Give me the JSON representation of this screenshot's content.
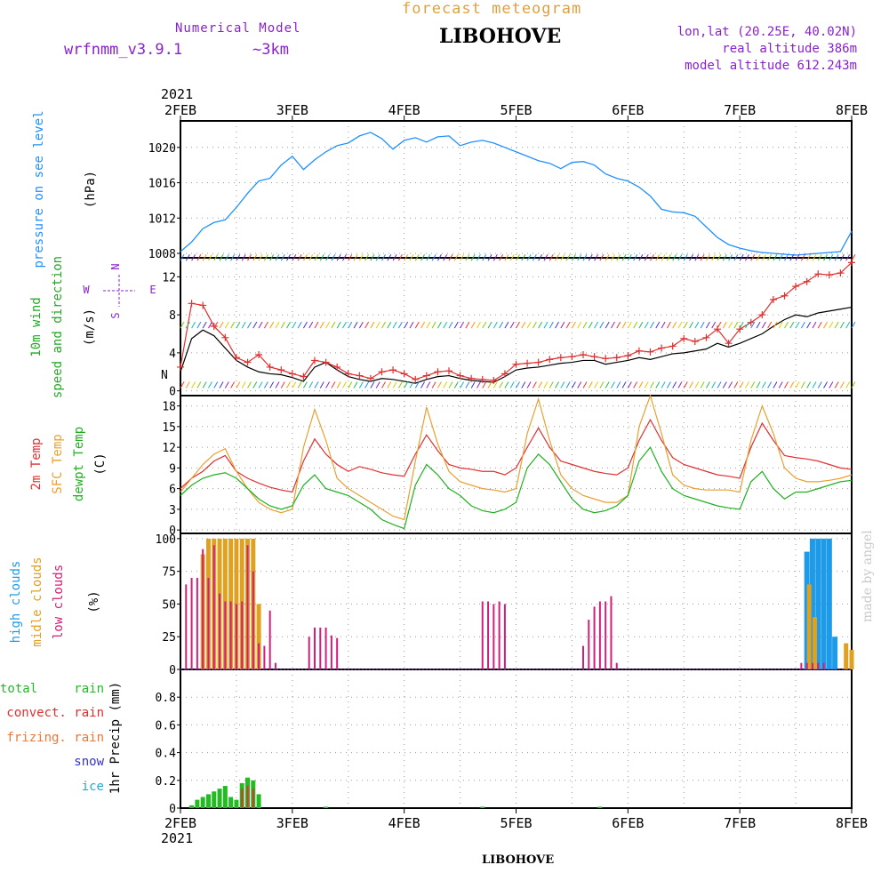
{
  "header": {
    "title_top": "forecast meteogram",
    "location": "LIBOHOVE",
    "model_label": "Numerical Model",
    "model_name": "wrfnmm_v3.9.1",
    "resolution": "~3km",
    "lonlat": "lon,lat (20.25E, 40.02N)",
    "real_altitude": "real altitude 386m",
    "model_altitude": "model altitude  612.243m",
    "footer_location": "LIBOHOVE",
    "credit": "made by angel"
  },
  "colors": {
    "pressure": "#1e90ff",
    "wind_label": "#22aa22",
    "wind_speed": "#000000",
    "wind_gust": "#e03030",
    "temp2m": "#e03030",
    "sfc_temp": "#e8a030",
    "dewpt": "#20b020",
    "high_clouds": "#1e9be8",
    "middle_clouds": "#e0a020",
    "low_clouds": "#d01f7a",
    "total_rain": "#22bb22",
    "convect_rain": "#e03030",
    "frizing_rain": "#ee7733",
    "snow": "#3333cc",
    "ice": "#22aacc",
    "purple_text": "#8822cc",
    "gold_text": "#e0a040"
  },
  "chart_data": [
    {
      "type": "line",
      "panel": "pressure",
      "ylabel": "pressure on see level",
      "unit": "(hPa)",
      "ylim": [
        1007.5,
        1023
      ],
      "yticks": [
        1008,
        1012,
        1016,
        1020
      ],
      "x_dates_top": [
        "2FEB",
        "3FEB",
        "4FEB",
        "5FEB",
        "6FEB",
        "7FEB",
        "8FEB"
      ],
      "year": "2021",
      "grid": true,
      "series": [
        {
          "x": [
            0,
            0.1,
            0.2,
            0.3,
            0.4,
            0.5,
            0.6,
            0.7,
            0.8,
            0.9,
            1.0,
            1.1,
            1.2,
            1.3,
            1.4,
            1.5,
            1.6,
            1.7,
            1.8,
            1.9,
            2.0,
            2.1,
            2.2,
            2.3,
            2.4,
            2.5,
            2.6,
            2.7,
            2.8,
            2.9,
            3.0,
            3.1,
            3.2,
            3.3,
            3.4,
            3.5,
            3.6,
            3.7,
            3.8,
            3.9,
            4.0,
            4.1,
            4.2,
            4.3,
            4.4,
            4.5,
            4.6,
            4.7,
            4.8,
            4.9,
            5.0,
            5.1,
            5.2,
            5.3,
            5.4,
            5.5,
            5.6,
            5.7,
            5.8,
            5.9,
            6.0
          ],
          "y": [
            1008.2,
            1009.3,
            1010.8,
            1011.5,
            1011.8,
            1013.2,
            1014.8,
            1016.2,
            1016.5,
            1018.0,
            1019.0,
            1017.5,
            1018.6,
            1019.5,
            1020.2,
            1020.5,
            1021.3,
            1021.7,
            1021.0,
            1019.8,
            1020.8,
            1021.1,
            1020.6,
            1021.2,
            1021.3,
            1020.2,
            1020.6,
            1020.8,
            1020.5,
            1020.0,
            1019.5,
            1019.0,
            1018.5,
            1018.2,
            1017.6,
            1018.3,
            1018.4,
            1018.0,
            1017.0,
            1016.5,
            1016.2,
            1015.5,
            1014.5,
            1013.0,
            1012.7,
            1012.6,
            1012.2,
            1011.0,
            1009.8,
            1009.0,
            1008.6,
            1008.3,
            1008.1,
            1008.0,
            1007.9,
            1007.8,
            1007.9,
            1008.0,
            1008.1,
            1008.2,
            1010.5
          ]
        }
      ]
    },
    {
      "type": "line",
      "panel": "wind",
      "ylabel": "10m wind speed and direction",
      "unit": "(m/s)",
      "compass": [
        "N",
        "W",
        "E",
        "S"
      ],
      "ylim": [
        -0.5,
        14
      ],
      "yticks": [
        0,
        4,
        8,
        12
      ],
      "grid": true,
      "series": [
        {
          "name": "speed",
          "x": [
            0,
            0.1,
            0.2,
            0.3,
            0.4,
            0.5,
            0.6,
            0.7,
            0.8,
            0.9,
            1.0,
            1.1,
            1.2,
            1.3,
            1.4,
            1.5,
            1.6,
            1.7,
            1.8,
            1.9,
            2.0,
            2.1,
            2.2,
            2.3,
            2.4,
            2.5,
            2.6,
            2.7,
            2.8,
            2.9,
            3.0,
            3.1,
            3.2,
            3.3,
            3.4,
            3.5,
            3.6,
            3.7,
            3.8,
            3.9,
            4.0,
            4.1,
            4.2,
            4.3,
            4.4,
            4.5,
            4.6,
            4.7,
            4.8,
            4.9,
            5.0,
            5.1,
            5.2,
            5.3,
            5.4,
            5.5,
            5.6,
            5.7,
            5.8,
            5.9,
            6.0
          ],
          "y": [
            2.0,
            5.5,
            6.4,
            5.8,
            4.5,
            3.2,
            2.5,
            2.0,
            1.8,
            1.7,
            1.4,
            1.0,
            2.5,
            3.0,
            2.2,
            1.5,
            1.2,
            1.0,
            1.3,
            1.2,
            1.0,
            0.8,
            1.2,
            1.5,
            1.6,
            1.3,
            1.1,
            1.0,
            0.9,
            1.5,
            2.2,
            2.4,
            2.5,
            2.7,
            2.9,
            3.0,
            3.2,
            3.2,
            2.8,
            3.0,
            3.2,
            3.5,
            3.3,
            3.6,
            3.9,
            4.0,
            4.2,
            4.4,
            5.0,
            4.6,
            5.0,
            5.5,
            6.0,
            6.8,
            7.5,
            8.0,
            7.8,
            8.2,
            8.4,
            8.6,
            8.8
          ]
        },
        {
          "name": "gust",
          "x": [
            0,
            0.1,
            0.2,
            0.3,
            0.4,
            0.5,
            0.6,
            0.7,
            0.8,
            0.9,
            1.0,
            1.1,
            1.2,
            1.3,
            1.4,
            1.5,
            1.6,
            1.7,
            1.8,
            1.9,
            2.0,
            2.1,
            2.2,
            2.3,
            2.4,
            2.5,
            2.6,
            2.7,
            2.8,
            2.9,
            3.0,
            3.1,
            3.2,
            3.3,
            3.4,
            3.5,
            3.6,
            3.7,
            3.8,
            3.9,
            4.0,
            4.1,
            4.2,
            4.3,
            4.4,
            4.5,
            4.6,
            4.7,
            4.8,
            4.9,
            5.0,
            5.1,
            5.2,
            5.3,
            5.4,
            5.5,
            5.6,
            5.7,
            5.8,
            5.9,
            6.0
          ],
          "y": [
            2.5,
            9.2,
            9.0,
            6.8,
            5.6,
            3.5,
            3.0,
            3.8,
            2.5,
            2.2,
            1.8,
            1.5,
            3.2,
            3.0,
            2.5,
            1.8,
            1.6,
            1.3,
            2.0,
            2.2,
            1.8,
            1.2,
            1.6,
            2.0,
            2.1,
            1.6,
            1.3,
            1.2,
            1.1,
            1.8,
            2.8,
            2.9,
            3.0,
            3.3,
            3.5,
            3.6,
            3.8,
            3.6,
            3.4,
            3.5,
            3.7,
            4.2,
            4.1,
            4.5,
            4.7,
            5.5,
            5.2,
            5.6,
            6.5,
            5.0,
            6.5,
            7.2,
            8.0,
            9.6,
            10.0,
            11.0,
            11.5,
            12.3,
            12.2,
            12.4,
            13.5
          ]
        }
      ]
    },
    {
      "type": "line",
      "panel": "temperature",
      "ylabel": [
        "2m Temp",
        "SFC Temp",
        "dewpt Temp"
      ],
      "unit": "(C)",
      "ylim": [
        -0.5,
        19.5
      ],
      "yticks": [
        0,
        3,
        6,
        9,
        12,
        15,
        18
      ],
      "grid": true,
      "series": [
        {
          "name": "2m Temp",
          "x": [
            0,
            0.1,
            0.2,
            0.3,
            0.4,
            0.5,
            0.6,
            0.7,
            0.8,
            0.9,
            1.0,
            1.1,
            1.2,
            1.3,
            1.4,
            1.5,
            1.6,
            1.7,
            1.8,
            1.9,
            2.0,
            2.1,
            2.2,
            2.3,
            2.4,
            2.5,
            2.6,
            2.7,
            2.8,
            2.9,
            3.0,
            3.1,
            3.2,
            3.3,
            3.4,
            3.5,
            3.6,
            3.7,
            3.8,
            3.9,
            4.0,
            4.1,
            4.2,
            4.3,
            4.4,
            4.5,
            4.6,
            4.7,
            4.8,
            4.9,
            5.0,
            5.1,
            5.2,
            5.3,
            5.4,
            5.5,
            5.6,
            5.7,
            5.8,
            5.9,
            6.0
          ],
          "y": [
            6.0,
            7.5,
            8.5,
            10.0,
            10.8,
            8.5,
            7.5,
            6.8,
            6.2,
            5.8,
            5.5,
            10.0,
            13.2,
            11.0,
            9.5,
            8.5,
            9.2,
            8.8,
            8.3,
            8.0,
            7.8,
            11.0,
            13.8,
            11.5,
            9.5,
            9.0,
            8.8,
            8.5,
            8.5,
            8.0,
            9.0,
            12.0,
            14.8,
            12.0,
            10.0,
            9.5,
            9.0,
            8.5,
            8.2,
            8.0,
            9.0,
            13.0,
            16.0,
            13.0,
            10.5,
            9.5,
            9.0,
            8.5,
            8.0,
            7.8,
            7.5,
            12.0,
            15.5,
            13.0,
            10.8,
            10.5,
            10.3,
            10.0,
            9.5,
            9.0,
            8.8
          ]
        },
        {
          "name": "SFC Temp",
          "x": [
            0,
            0.1,
            0.2,
            0.3,
            0.4,
            0.5,
            0.6,
            0.7,
            0.8,
            0.9,
            1.0,
            1.1,
            1.2,
            1.3,
            1.4,
            1.5,
            1.6,
            1.7,
            1.8,
            1.9,
            2.0,
            2.1,
            2.2,
            2.3,
            2.4,
            2.5,
            2.6,
            2.7,
            2.8,
            2.9,
            3.0,
            3.1,
            3.2,
            3.3,
            3.4,
            3.5,
            3.6,
            3.7,
            3.8,
            3.9,
            4.0,
            4.1,
            4.2,
            4.3,
            4.4,
            4.5,
            4.6,
            4.7,
            4.8,
            4.9,
            5.0,
            5.1,
            5.2,
            5.3,
            5.4,
            5.5,
            5.6,
            5.7,
            5.8,
            5.9,
            6.0
          ],
          "y": [
            5.5,
            7.5,
            9.5,
            11.0,
            11.8,
            8.5,
            6.0,
            4.0,
            3.0,
            2.5,
            3.0,
            12.0,
            17.5,
            13.0,
            7.5,
            6.0,
            5.0,
            4.0,
            3.0,
            2.0,
            1.5,
            10.0,
            17.8,
            12.5,
            8.5,
            7.0,
            6.5,
            6.0,
            5.8,
            5.5,
            6.0,
            14.0,
            19.0,
            13.0,
            8.0,
            6.0,
            5.0,
            4.5,
            4.0,
            4.0,
            5.0,
            15.0,
            19.5,
            14.0,
            8.0,
            6.5,
            6.0,
            5.8,
            5.8,
            5.8,
            5.5,
            13.0,
            18.0,
            14.0,
            9.0,
            7.5,
            7.0,
            7.0,
            7.2,
            7.5,
            8.0
          ]
        },
        {
          "name": "dewpt Temp",
          "x": [
            0,
            0.1,
            0.2,
            0.3,
            0.4,
            0.5,
            0.6,
            0.7,
            0.8,
            0.9,
            1.0,
            1.1,
            1.2,
            1.3,
            1.4,
            1.5,
            1.6,
            1.7,
            1.8,
            1.9,
            2.0,
            2.1,
            2.2,
            2.3,
            2.4,
            2.5,
            2.6,
            2.7,
            2.8,
            2.9,
            3.0,
            3.1,
            3.2,
            3.3,
            3.4,
            3.5,
            3.6,
            3.7,
            3.8,
            3.9,
            4.0,
            4.1,
            4.2,
            4.3,
            4.4,
            4.5,
            4.6,
            4.7,
            4.8,
            4.9,
            5.0,
            5.1,
            5.2,
            5.3,
            5.4,
            5.5,
            5.6,
            5.7,
            5.8,
            5.9,
            6.0
          ],
          "y": [
            5.0,
            6.5,
            7.5,
            8.0,
            8.3,
            7.5,
            6.0,
            4.5,
            3.5,
            3.0,
            3.5,
            6.5,
            8.0,
            6.0,
            5.5,
            5.0,
            4.0,
            3.0,
            1.5,
            0.8,
            0.2,
            6.5,
            9.5,
            8.0,
            6.0,
            5.0,
            3.5,
            2.8,
            2.5,
            3.0,
            4.0,
            9.0,
            11.0,
            9.5,
            7.0,
            4.5,
            3.0,
            2.5,
            2.8,
            3.5,
            5.0,
            10.0,
            12.0,
            8.5,
            6.0,
            5.0,
            4.5,
            4.0,
            3.5,
            3.2,
            3.0,
            7.0,
            8.5,
            6.0,
            4.5,
            5.5,
            5.5,
            6.0,
            6.5,
            7.0,
            7.2
          ]
        }
      ]
    },
    {
      "type": "bar",
      "panel": "clouds",
      "ylabel": [
        "high clouds",
        "midle clouds",
        "low clouds"
      ],
      "unit": "(%)",
      "ylim": [
        0,
        104
      ],
      "yticks": [
        0,
        25,
        50,
        75,
        100
      ],
      "grid": true,
      "series": [
        {
          "name": "high clouds",
          "x": [
            5.6,
            5.65,
            5.7,
            5.75,
            5.8,
            5.85
          ],
          "values": [
            90,
            100,
            100,
            100,
            100,
            25
          ]
        },
        {
          "name": "midle clouds",
          "x": [
            0.2,
            0.25,
            0.3,
            0.35,
            0.4,
            0.45,
            0.5,
            0.55,
            0.6,
            0.65,
            0.7,
            5.62,
            5.67,
            5.95,
            6.0
          ],
          "values": [
            88,
            100,
            100,
            100,
            100,
            100,
            100,
            100,
            100,
            100,
            50,
            65,
            40,
            20,
            15
          ]
        },
        {
          "name": "low clouds",
          "x": [
            0.05,
            0.1,
            0.15,
            0.2,
            0.25,
            0.3,
            0.35,
            0.4,
            0.45,
            0.5,
            0.55,
            0.6,
            0.65,
            0.7,
            0.75,
            0.8,
            0.85,
            0.9,
            1.15,
            1.2,
            1.25,
            1.3,
            1.35,
            1.4,
            2.65,
            2.7,
            2.75,
            2.8,
            2.85,
            2.9,
            3.6,
            3.65,
            3.7,
            3.75,
            3.8,
            3.85,
            3.9,
            5.55,
            5.6,
            5.65,
            5.7,
            5.75
          ],
          "values": [
            65,
            70,
            70,
            92,
            70,
            95,
            58,
            52,
            52,
            50,
            52,
            95,
            75,
            20,
            18,
            45,
            5,
            0,
            25,
            32,
            32,
            32,
            26,
            24,
            0,
            52,
            52,
            50,
            52,
            50,
            18,
            38,
            48,
            52,
            52,
            56,
            5,
            5,
            5,
            5,
            5,
            5
          ]
        }
      ]
    },
    {
      "type": "bar",
      "panel": "precip",
      "ylabel": "1hr Precip (mm)",
      "legend": [
        "total",
        "rain",
        "convect. rain",
        "frizing. rain",
        "snow",
        "ice"
      ],
      "ylim": [
        0,
        1.0
      ],
      "yticks": [
        0,
        0.2,
        0.4,
        0.6,
        0.8
      ],
      "ytick_labels": [
        "0",
        "0.2",
        "0.4",
        "0.6",
        "0.8"
      ],
      "grid": true,
      "series": [
        {
          "name": "total rain",
          "x": [
            0.1,
            0.15,
            0.2,
            0.25,
            0.3,
            0.35,
            0.4,
            0.45,
            0.5,
            0.55,
            0.6,
            0.65,
            0.7,
            1.3,
            2.7,
            3.75
          ],
          "values": [
            0.02,
            0.06,
            0.08,
            0.1,
            0.12,
            0.14,
            0.16,
            0.08,
            0.06,
            0.18,
            0.22,
            0.2,
            0.1,
            0.01,
            0.01,
            0.01
          ]
        },
        {
          "name": "convect. rain",
          "x": [
            0.55,
            0.6,
            0.65
          ],
          "values": [
            0.14,
            0.16,
            0.14
          ]
        }
      ],
      "x_dates_bottom": [
        "2FEB",
        "3FEB",
        "4FEB",
        "5FEB",
        "6FEB",
        "7FEB",
        "8FEB"
      ],
      "year": "2021"
    }
  ]
}
